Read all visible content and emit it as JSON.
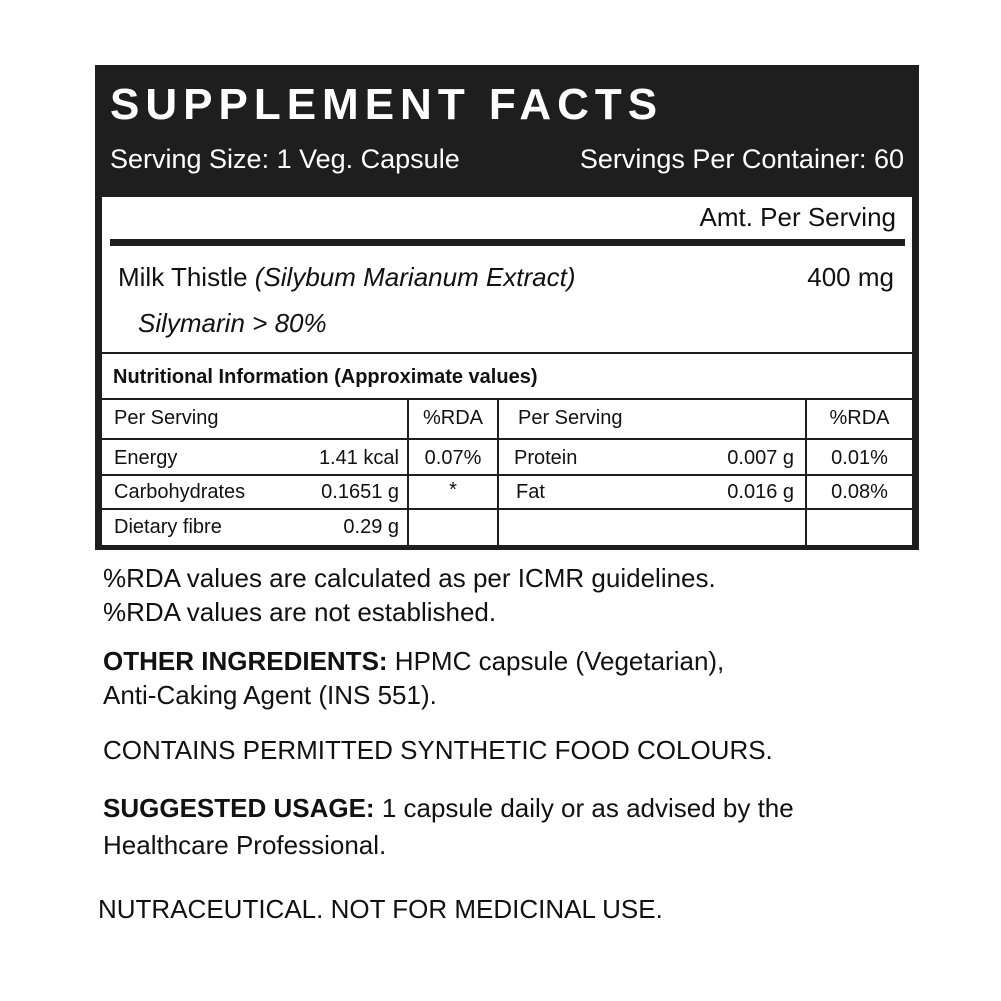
{
  "header": {
    "title": "SUPPLEMENT FACTS",
    "serving_size": "Serving Size: 1 Veg. Capsule",
    "servings_per_container": "Servings Per Container: 60"
  },
  "amount_header": "Amt. Per Serving",
  "ingredient": {
    "name": "Milk Thistle",
    "latin": "(Silybum Marianum Extract)",
    "amount": "400 mg",
    "sub": "Silymarin",
    "sub_value": "> 80%"
  },
  "nutrition": {
    "title": "Nutritional Information (Approximate values)",
    "headers": [
      "Per Serving",
      "%RDA",
      "Per Serving",
      "%RDA"
    ],
    "rows": [
      {
        "l_name": "Energy",
        "l_value": "1.41 kcal",
        "l_rda": "0.07%",
        "r_name": "Protein",
        "r_value": "0.007 g",
        "r_rda": "0.01%"
      },
      {
        "l_name": "Carbohydrates",
        "l_value": "0.1651 g",
        "l_rda": "*",
        "r_name": "Fat",
        "r_value": "0.016 g",
        "r_rda": "0.08%"
      },
      {
        "l_name": "Dietary fibre",
        "l_value": "0.29 g",
        "l_rda": "",
        "r_name": "",
        "r_value": "",
        "r_rda": ""
      }
    ]
  },
  "notes": {
    "rda1": "%RDA values are calculated as per ICMR guidelines.",
    "rda2": "%RDA values are not established.",
    "other_label": "OTHER INGREDIENTS:",
    "other_text1": " HPMC capsule (Vegetarian),",
    "other_text2": "Anti-Caking Agent (INS 551).",
    "colours": "CONTAINS PERMITTED SYNTHETIC FOOD COLOURS.",
    "usage_label": "SUGGESTED USAGE:",
    "usage_text1": " 1 capsule daily or as advised by the",
    "usage_text2": "Healthcare Professional.",
    "disclaimer": "NUTRACEUTICAL. NOT FOR MEDICINAL USE."
  },
  "colors": {
    "panel": "#1e1e1e",
    "text": "#111111"
  }
}
